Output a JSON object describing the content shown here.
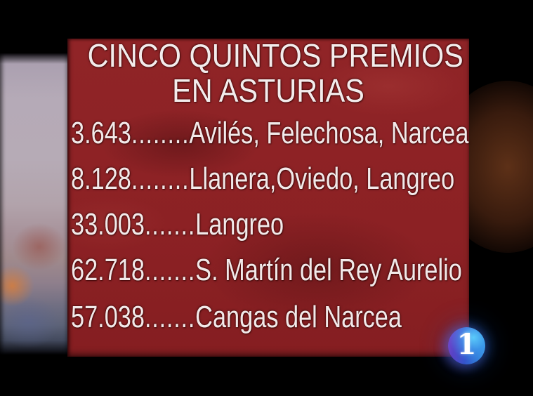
{
  "panel": {
    "title_line1": "CINCO QUINTOS PREMIOS",
    "title_line2": "EN ASTURIAS",
    "rows": [
      {
        "number": "3.643",
        "dots": "........",
        "places": "Avilés, Felechosa, Narcea"
      },
      {
        "number": "8.128",
        "dots": "........",
        "places": "Llanera,Oviedo, Langreo"
      },
      {
        "number": "33.003",
        "dots": ".......",
        "places": "Langreo"
      },
      {
        "number": "62.718",
        "dots": ".......",
        "places": "S. Martín del Rey Aurelio"
      },
      {
        "number": "57.038",
        "dots": ".......",
        "places": "Cangas del Narcea"
      }
    ]
  },
  "channel": {
    "logo_label": "1"
  },
  "colors": {
    "background": "#000000",
    "panel_red": "#8c2124",
    "text": "#f2e9e9",
    "left_strip_lavender": "#b5aab7",
    "right_glow_brown": "#964e26",
    "logo_purple": "#9a4ad0",
    "logo_blue": "#3558d0",
    "logo_cyan": "#45c2f2"
  }
}
